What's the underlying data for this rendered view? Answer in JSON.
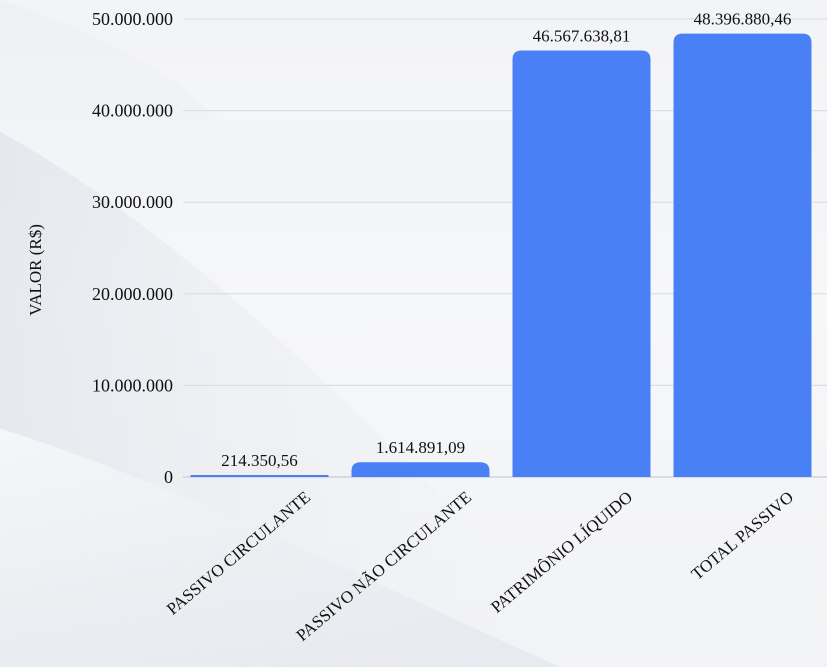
{
  "chart_data": {
    "type": "bar",
    "title": "",
    "xlabel": "",
    "ylabel": "VALOR (R$)",
    "ylim": [
      0,
      50000000
    ],
    "yticks": [
      0,
      10000000,
      20000000,
      30000000,
      40000000,
      50000000
    ],
    "ytick_labels": [
      "0",
      "10.000.000",
      "20.000.000",
      "30.000.000",
      "40.000.000",
      "50.000.000"
    ],
    "categories": [
      "PASSIVO CIRCULANTE",
      "PASSIVO NÃO CIRCULANTE",
      "PATRIMÔNIO LÍQUIDO",
      "TOTAL PASSIVO"
    ],
    "values": [
      214350.56,
      1614891.09,
      46567638.81,
      48396880.46
    ],
    "data_labels": [
      "214.350,56",
      "1.614.891,09",
      "46.567.638,81",
      "48.396.880,46"
    ],
    "grid": true,
    "legend": "none",
    "colors": {
      "bar": "#4a80f5",
      "grid": "#d9dbe0",
      "text": "#111111"
    }
  }
}
